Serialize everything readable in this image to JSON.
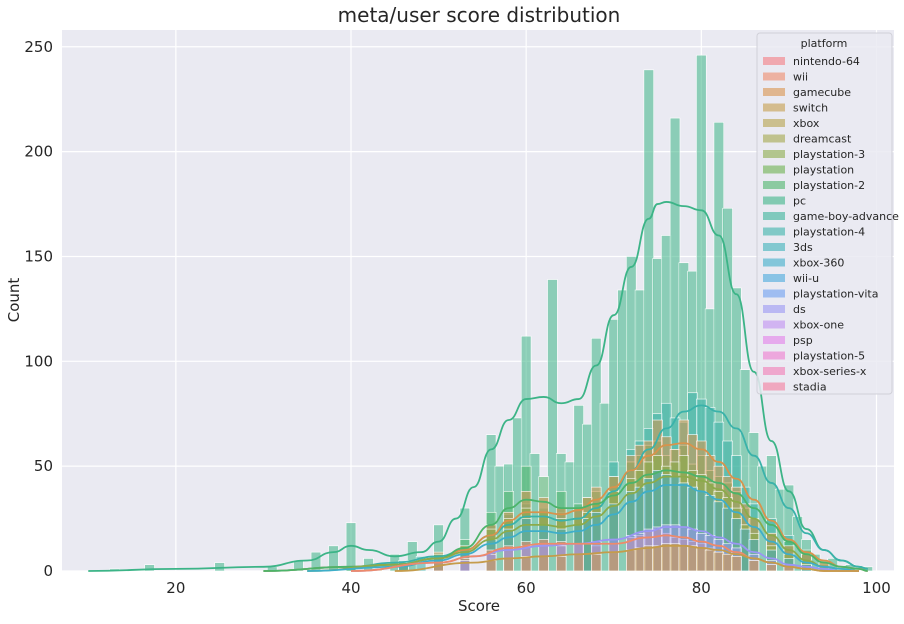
{
  "chart_data": {
    "type": "bar",
    "title": "meta/user score distribution",
    "xlabel": "Score",
    "ylabel": "Count",
    "xlim": [
      7,
      102
    ],
    "ylim": [
      0,
      258
    ],
    "xticks": [
      20,
      40,
      60,
      80,
      100
    ],
    "yticks": [
      0,
      50,
      100,
      150,
      200,
      250
    ],
    "grid": true,
    "background": "#eaeaf2",
    "legend": {
      "title": "platform",
      "placement": "top-right",
      "entries": [
        {
          "name": "nintendo-64",
          "color": "#f47b82"
        },
        {
          "name": "wii",
          "color": "#ee8a6b"
        },
        {
          "name": "gamecube",
          "color": "#d8934c"
        },
        {
          "name": "switch",
          "color": "#c59c4b"
        },
        {
          "name": "xbox",
          "color": "#b5a14b"
        },
        {
          "name": "dreamcast",
          "color": "#a3a64b"
        },
        {
          "name": "playstation-3",
          "color": "#8cab4b"
        },
        {
          "name": "playstation",
          "color": "#6db04f"
        },
        {
          "name": "playstation-2",
          "color": "#4cb46a"
        },
        {
          "name": "pc",
          "color": "#3cb487"
        },
        {
          "name": "game-boy-advance",
          "color": "#39b39a"
        },
        {
          "name": "playstation-4",
          "color": "#3ab2aa"
        },
        {
          "name": "3ds",
          "color": "#3cb1b9"
        },
        {
          "name": "xbox-360",
          "color": "#3eaec9"
        },
        {
          "name": "wii-u",
          "color": "#47a8dc"
        },
        {
          "name": "playstation-vita",
          "color": "#6c9ff0"
        },
        {
          "name": "ds",
          "color": "#9a96f4"
        },
        {
          "name": "xbox-one",
          "color": "#bf8ff1"
        },
        {
          "name": "psp",
          "color": "#e27fea"
        },
        {
          "name": "playstation-5",
          "color": "#ee79cf"
        },
        {
          "name": "xbox-series-x",
          "color": "#f27ab4"
        },
        {
          "name": "stadia",
          "color": "#f47b9c"
        }
      ]
    },
    "bin_width": 1.12,
    "series": [
      {
        "name": "pc",
        "color": "#3cb487",
        "x": [
          13,
          17,
          25,
          31,
          34,
          36,
          38,
          40,
          42,
          45,
          47,
          50,
          53,
          56,
          57,
          58,
          59,
          60,
          61,
          62,
          63,
          64,
          65,
          66,
          67,
          68,
          69,
          70,
          71,
          72,
          73,
          74,
          75,
          76,
          77,
          78,
          79,
          80,
          81,
          82,
          83,
          84,
          85,
          86,
          87,
          88,
          89,
          90,
          91,
          92,
          93,
          95,
          97,
          99
        ],
        "values": [
          1,
          3,
          4,
          2,
          5,
          9,
          12,
          23,
          6,
          8,
          14,
          22,
          30,
          65,
          50,
          51,
          73,
          112,
          56,
          27,
          139,
          56,
          52,
          79,
          70,
          111,
          80,
          120,
          134,
          150,
          134,
          239,
          149,
          160,
          216,
          147,
          143,
          246,
          125,
          214,
          173,
          135,
          96,
          66,
          50,
          55,
          39,
          41,
          26,
          15,
          8,
          6,
          3,
          2
        ]
      },
      {
        "name": "playstation-4",
        "color": "#3ab2aa",
        "x": [
          40,
          46,
          48,
          50,
          53,
          56,
          58,
          60,
          62,
          64,
          66,
          67,
          68,
          70,
          72,
          73,
          74,
          75,
          76,
          77,
          78,
          79,
          80,
          81,
          82,
          83,
          84,
          85,
          86,
          88,
          90,
          92,
          94
        ],
        "values": [
          2,
          5,
          7,
          8,
          12,
          22,
          27,
          32,
          30,
          28,
          29,
          25,
          30,
          52,
          58,
          62,
          68,
          75,
          80,
          73,
          71,
          85,
          82,
          78,
          71,
          62,
          55,
          40,
          32,
          25,
          17,
          8,
          3
        ]
      },
      {
        "name": "playstation-2",
        "color": "#4cb46a",
        "x": [
          40,
          46,
          50,
          53,
          56,
          58,
          60,
          62,
          64,
          66,
          67,
          68,
          70,
          72,
          73,
          74,
          75,
          76,
          77,
          78,
          79,
          80,
          81,
          82,
          83,
          84,
          85,
          86,
          88,
          90,
          92,
          94
        ],
        "values": [
          2,
          4,
          8,
          15,
          28,
          38,
          50,
          45,
          38,
          32,
          35,
          38,
          45,
          52,
          55,
          60,
          62,
          55,
          58,
          60,
          51,
          55,
          48,
          45,
          42,
          38,
          30,
          25,
          18,
          14,
          10,
          5
        ]
      },
      {
        "name": "gamecube",
        "color": "#d8934c",
        "x": [
          43,
          46,
          50,
          53,
          56,
          58,
          60,
          62,
          64,
          66,
          67,
          68,
          70,
          72,
          73,
          74,
          75,
          76,
          77,
          78,
          79,
          80,
          81,
          82,
          83,
          84,
          85,
          86,
          88,
          90,
          92,
          94
        ],
        "values": [
          1,
          4,
          9,
          12,
          22,
          28,
          38,
          35,
          30,
          30,
          35,
          40,
          45,
          55,
          60,
          62,
          72,
          64,
          58,
          72,
          65,
          62,
          55,
          50,
          45,
          40,
          32,
          25,
          18,
          12,
          8,
          4
        ]
      },
      {
        "name": "playstation-3",
        "color": "#8cab4b",
        "x": [
          46,
          50,
          53,
          56,
          58,
          60,
          62,
          64,
          66,
          67,
          68,
          70,
          72,
          73,
          74,
          75,
          76,
          77,
          78,
          79,
          80,
          81,
          82,
          83,
          84,
          85,
          86,
          88,
          90,
          92
        ],
        "values": [
          4,
          8,
          12,
          20,
          25,
          30,
          28,
          25,
          25,
          28,
          32,
          38,
          44,
          48,
          52,
          55,
          50,
          52,
          55,
          48,
          46,
          42,
          38,
          35,
          30,
          22,
          18,
          12,
          8,
          5
        ]
      },
      {
        "name": "xbox-360",
        "color": "#3eaec9",
        "x": [
          46,
          50,
          53,
          56,
          58,
          60,
          62,
          64,
          66,
          67,
          68,
          70,
          72,
          73,
          74,
          75,
          76,
          77,
          78,
          79,
          80,
          81,
          82,
          83,
          84,
          85,
          86,
          88,
          90,
          92
        ],
        "values": [
          3,
          7,
          10,
          15,
          20,
          25,
          22,
          20,
          22,
          25,
          28,
          32,
          38,
          40,
          44,
          48,
          46,
          45,
          42,
          40,
          38,
          36,
          33,
          30,
          25,
          20,
          15,
          10,
          6,
          3
        ]
      },
      {
        "name": "wii",
        "color": "#ee8a6b",
        "x": [
          50,
          53,
          56,
          58,
          60,
          62,
          64,
          66,
          68,
          70,
          72,
          73,
          74,
          75,
          76,
          77,
          78,
          79,
          80,
          81,
          82,
          83,
          84,
          86,
          88,
          90
        ],
        "values": [
          4,
          6,
          10,
          12,
          14,
          15,
          14,
          13,
          12,
          13,
          16,
          17,
          19,
          20,
          18,
          16,
          15,
          14,
          13,
          11,
          9,
          8,
          7,
          5,
          3,
          2
        ]
      },
      {
        "name": "ds",
        "color": "#9a96f4",
        "x": [
          53,
          56,
          58,
          60,
          62,
          64,
          66,
          68,
          70,
          72,
          73,
          74,
          75,
          76,
          77,
          78,
          79,
          80,
          81,
          82,
          83,
          84,
          86,
          88,
          90
        ],
        "values": [
          5,
          8,
          10,
          12,
          13,
          12,
          13,
          14,
          15,
          17,
          18,
          20,
          21,
          22,
          22,
          21,
          20,
          18,
          17,
          15,
          13,
          11,
          8,
          5,
          3
        ]
      },
      {
        "name": "switch",
        "color": "#c59c4b",
        "x": [
          56,
          58,
          60,
          62,
          64,
          66,
          68,
          70,
          72,
          73,
          74,
          75,
          76,
          77,
          78,
          79,
          80,
          81,
          82,
          83,
          84,
          86,
          88,
          90
        ],
        "values": [
          5,
          6,
          7,
          7,
          7,
          8,
          8,
          9,
          10,
          11,
          12,
          12,
          13,
          13,
          12,
          12,
          11,
          10,
          9,
          8,
          7,
          5,
          3,
          2
        ]
      }
    ],
    "kde": [
      {
        "name": "pc",
        "color": "#3cb487",
        "x": [
          10,
          20,
          30,
          35,
          38,
          40,
          42,
          45,
          48,
          50,
          52,
          54,
          56,
          58,
          60,
          62,
          64,
          66,
          68,
          70,
          72,
          74,
          75,
          76,
          78,
          80,
          82,
          84,
          86,
          88,
          90,
          92,
          94,
          96,
          98,
          99
        ],
        "y": [
          0,
          1,
          2,
          5,
          9,
          12,
          10,
          7,
          9,
          14,
          25,
          40,
          58,
          72,
          82,
          83,
          80,
          82,
          98,
          122,
          145,
          168,
          175,
          176,
          174,
          172,
          160,
          132,
          95,
          62,
          38,
          20,
          10,
          5,
          2,
          1
        ]
      },
      {
        "name": "playstation-4",
        "color": "#3ab2aa",
        "x": [
          30,
          40,
          45,
          50,
          53,
          56,
          58,
          60,
          62,
          64,
          66,
          68,
          70,
          72,
          74,
          76,
          78,
          80,
          82,
          84,
          86,
          88,
          90,
          92,
          94,
          96,
          98,
          99
        ],
        "y": [
          0,
          2,
          4,
          7,
          10,
          17,
          22,
          26,
          26,
          24,
          25,
          30,
          38,
          48,
          58,
          68,
          76,
          79,
          76,
          68,
          55,
          42,
          30,
          18,
          10,
          5,
          2,
          1
        ]
      },
      {
        "name": "gamecube",
        "color": "#d8934c",
        "x": [
          30,
          40,
          45,
          50,
          53,
          56,
          58,
          60,
          62,
          64,
          66,
          68,
          70,
          72,
          74,
          76,
          78,
          80,
          82,
          84,
          86,
          88,
          90,
          92,
          94,
          96,
          98,
          99
        ],
        "y": [
          0,
          2,
          3,
          6,
          10,
          17,
          24,
          28,
          28,
          27,
          29,
          34,
          40,
          48,
          55,
          60,
          61,
          58,
          52,
          44,
          34,
          24,
          15,
          9,
          5,
          2,
          1,
          0
        ]
      },
      {
        "name": "playstation-2",
        "color": "#4cb46a",
        "x": [
          30,
          40,
          45,
          50,
          53,
          56,
          58,
          60,
          62,
          64,
          66,
          68,
          70,
          72,
          74,
          76,
          78,
          80,
          82,
          84,
          86,
          88,
          90,
          92,
          94,
          96,
          98,
          99
        ],
        "y": [
          0,
          2,
          3,
          6,
          11,
          22,
          30,
          34,
          33,
          30,
          30,
          32,
          36,
          42,
          46,
          48,
          47,
          45,
          42,
          37,
          30,
          22,
          14,
          8,
          4,
          2,
          1,
          0
        ]
      },
      {
        "name": "playstation-3",
        "color": "#8cab4b",
        "x": [
          35,
          45,
          50,
          53,
          56,
          58,
          60,
          62,
          64,
          66,
          68,
          70,
          72,
          74,
          76,
          78,
          80,
          82,
          84,
          86,
          88,
          90,
          92,
          94,
          96,
          98
        ],
        "y": [
          0,
          3,
          6,
          9,
          15,
          19,
          22,
          22,
          21,
          22,
          26,
          31,
          37,
          42,
          45,
          45,
          43,
          39,
          33,
          25,
          17,
          10,
          5,
          2,
          1,
          0
        ]
      },
      {
        "name": "xbox-360",
        "color": "#3eaec9",
        "x": [
          35,
          45,
          50,
          53,
          56,
          58,
          60,
          62,
          64,
          66,
          68,
          70,
          72,
          74,
          76,
          78,
          80,
          82,
          84,
          86,
          88,
          90,
          92,
          94,
          96,
          98
        ],
        "y": [
          0,
          2,
          5,
          8,
          13,
          16,
          19,
          19,
          18,
          19,
          22,
          27,
          33,
          38,
          41,
          41,
          38,
          34,
          28,
          21,
          14,
          8,
          4,
          2,
          1,
          0
        ]
      },
      {
        "name": "ds",
        "color": "#9a96f4",
        "x": [
          40,
          50,
          54,
          58,
          62,
          66,
          70,
          74,
          76,
          78,
          80,
          82,
          84,
          86,
          88,
          90,
          92,
          94,
          96,
          98
        ],
        "y": [
          0,
          4,
          7,
          10,
          12,
          13,
          15,
          19,
          21,
          21,
          19,
          16,
          13,
          9,
          6,
          3,
          2,
          1,
          0,
          0
        ]
      },
      {
        "name": "wii",
        "color": "#ee8a6b",
        "x": [
          40,
          50,
          54,
          58,
          62,
          66,
          70,
          74,
          76,
          78,
          80,
          82,
          84,
          86,
          88,
          90,
          92,
          94,
          96,
          98
        ],
        "y": [
          0,
          4,
          7,
          11,
          13,
          13,
          13,
          16,
          17,
          16,
          14,
          12,
          9,
          6,
          4,
          2,
          1,
          0,
          0,
          0
        ]
      },
      {
        "name": "switch",
        "color": "#c59c4b",
        "x": [
          45,
          54,
          58,
          62,
          66,
          70,
          74,
          76,
          78,
          80,
          82,
          84,
          86,
          88,
          90,
          92,
          94,
          96,
          98
        ],
        "y": [
          0,
          4,
          6,
          7,
          8,
          9,
          11,
          12,
          12,
          11,
          10,
          8,
          6,
          4,
          2,
          1,
          0,
          0,
          0
        ]
      }
    ]
  }
}
